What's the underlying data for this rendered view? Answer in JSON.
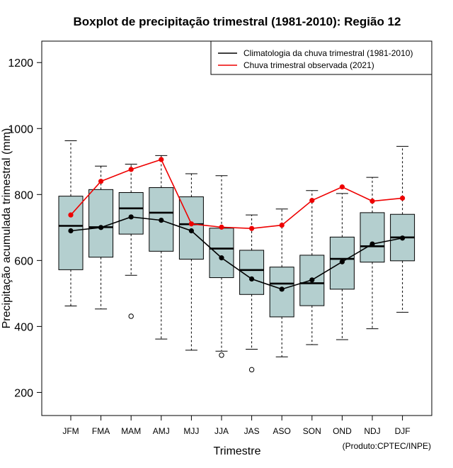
{
  "chart_data": {
    "type": "boxplot",
    "title": "Boxplot de precipitação trimestral (1981-2010): Região 12",
    "xlabel": "Trimestre",
    "ylabel": "Precipitação acumulada trimestral (mm)",
    "credit": "(Produto:CPTEC/INPE)",
    "ylim": [
      130,
      1265
    ],
    "yticks": [
      200,
      400,
      600,
      800,
      1000,
      1200
    ],
    "ytick_labels": [
      "200",
      "400",
      "600",
      "800",
      "1000",
      "1200"
    ],
    "categories": [
      "JFM",
      "FMA",
      "MAM",
      "AMJ",
      "MJJ",
      "JJA",
      "JAS",
      "ASO",
      "SON",
      "OND",
      "NDJ",
      "DJF"
    ],
    "boxes": [
      {
        "whisker_low": 462,
        "q1": 572,
        "median": 705,
        "q3": 795,
        "whisker_high": 963,
        "outliers": []
      },
      {
        "whisker_low": 453,
        "q1": 610,
        "median": 701,
        "q3": 815,
        "whisker_high": 886,
        "outliers": []
      },
      {
        "whisker_low": 555,
        "q1": 680,
        "median": 758,
        "q3": 806,
        "whisker_high": 892,
        "outliers": [
          431
        ]
      },
      {
        "whisker_low": 362,
        "q1": 628,
        "median": 745,
        "q3": 821,
        "whisker_high": 918,
        "outliers": []
      },
      {
        "whisker_low": 328,
        "q1": 604,
        "median": 710,
        "q3": 793,
        "whisker_high": 863,
        "outliers": []
      },
      {
        "whisker_low": 325,
        "q1": 548,
        "median": 636,
        "q3": 698,
        "whisker_high": 857,
        "outliers": [
          313
        ]
      },
      {
        "whisker_low": 331,
        "q1": 497,
        "median": 571,
        "q3": 631,
        "whisker_high": 738,
        "outliers": [
          269
        ]
      },
      {
        "whisker_low": 308,
        "q1": 429,
        "median": 530,
        "q3": 580,
        "whisker_high": 756,
        "outliers": []
      },
      {
        "whisker_low": 345,
        "q1": 463,
        "median": 531,
        "q3": 616,
        "whisker_high": 812,
        "outliers": []
      },
      {
        "whisker_low": 360,
        "q1": 513,
        "median": 605,
        "q3": 671,
        "whisker_high": 803,
        "outliers": []
      },
      {
        "whisker_low": 393,
        "q1": 595,
        "median": 643,
        "q3": 745,
        "whisker_high": 852,
        "outliers": []
      },
      {
        "whisker_low": 443,
        "q1": 599,
        "median": 670,
        "q3": 740,
        "whisker_high": 946,
        "outliers": []
      }
    ],
    "series": [
      {
        "name": "Climatologia da chuva trimestral (1981-2010)",
        "color": "#000000",
        "values": [
          690,
          700,
          732,
          722,
          690,
          608,
          544,
          513,
          541,
          596,
          650,
          668
        ]
      },
      {
        "name": "Chuva trimestral observada (2021)",
        "color": "#ee0000",
        "values": [
          738,
          840,
          876,
          906,
          711,
          701,
          697,
          707,
          782,
          823,
          780,
          789
        ]
      }
    ],
    "box_fill": "#b4cfcf",
    "legend_position": "top-right"
  }
}
